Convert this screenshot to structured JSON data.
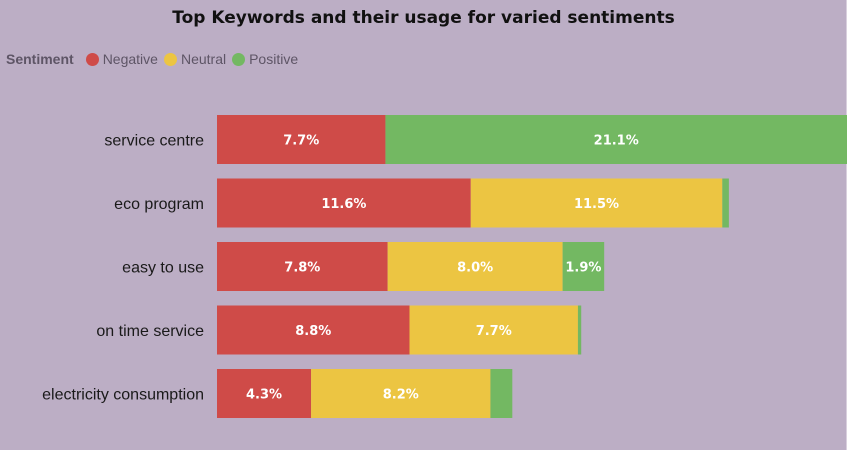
{
  "chart_data": {
    "type": "bar",
    "orientation": "horizontal",
    "stacked": true,
    "title": "Top Keywords and their usage for varied sentiments",
    "legend_title": "Sentiment",
    "legend_position": "top-left",
    "categories": [
      "service centre",
      "eco program",
      "easy to use",
      "on time service",
      "electricity consumption"
    ],
    "series": [
      {
        "name": "Negative",
        "color": "#cf4b48",
        "values": [
          7.7,
          11.6,
          7.8,
          8.8,
          4.3
        ],
        "labels": [
          "7.7%",
          "11.6%",
          "7.8%",
          "8.8%",
          "4.3%"
        ]
      },
      {
        "name": "Neutral",
        "color": "#ecc542",
        "values": [
          0,
          11.5,
          8.0,
          7.7,
          8.2
        ],
        "labels": [
          "",
          "11.5%",
          "8.0%",
          "7.7%",
          "8.2%"
        ]
      },
      {
        "name": "Positive",
        "color": "#73b862",
        "values": [
          21.1,
          0.3,
          1.9,
          0.15,
          1.0
        ],
        "labels": [
          "21.1%",
          "",
          "1.9%",
          "",
          ""
        ]
      }
    ],
    "xlim": [
      0,
      28.8
    ],
    "grid": false
  }
}
